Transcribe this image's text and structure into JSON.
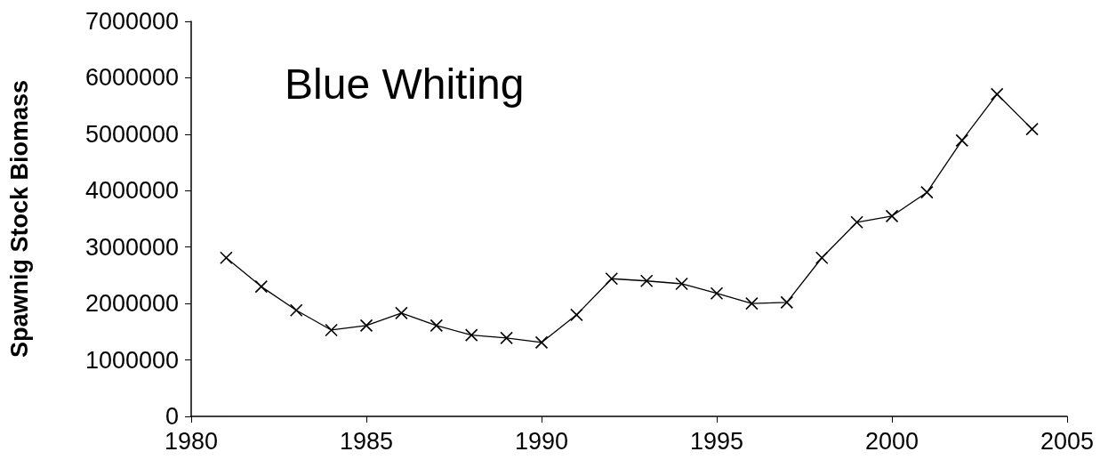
{
  "chart_data": {
    "type": "line",
    "ylabel": "Spawnig Stock Biomass",
    "annotations": [
      "Blue Whiting"
    ],
    "x": [
      1981,
      1982,
      1983,
      1984,
      1985,
      1986,
      1987,
      1988,
      1989,
      1990,
      1991,
      1992,
      1993,
      1994,
      1995,
      1996,
      1997,
      1998,
      1999,
      2000,
      2001,
      2002,
      2003,
      2004
    ],
    "series": [
      {
        "color": "#000000",
        "values": [
          2810000,
          2300000,
          1880000,
          1530000,
          1610000,
          1830000,
          1610000,
          1440000,
          1390000,
          1310000,
          1800000,
          2440000,
          2400000,
          2350000,
          2180000,
          2000000,
          2020000,
          2810000,
          3440000,
          3550000,
          3970000,
          4890000,
          5710000,
          5090000
        ]
      }
    ],
    "xlim": [
      1980,
      2005
    ],
    "xticks": [
      1980,
      1985,
      1990,
      1995,
      2000,
      2005
    ],
    "ylim": [
      0,
      7000000
    ],
    "yticks": [
      0,
      1000000,
      2000000,
      3000000,
      4000000,
      5000000,
      6000000,
      7000000
    ],
    "grid": false,
    "marker": "cross",
    "line_style": "solid"
  }
}
